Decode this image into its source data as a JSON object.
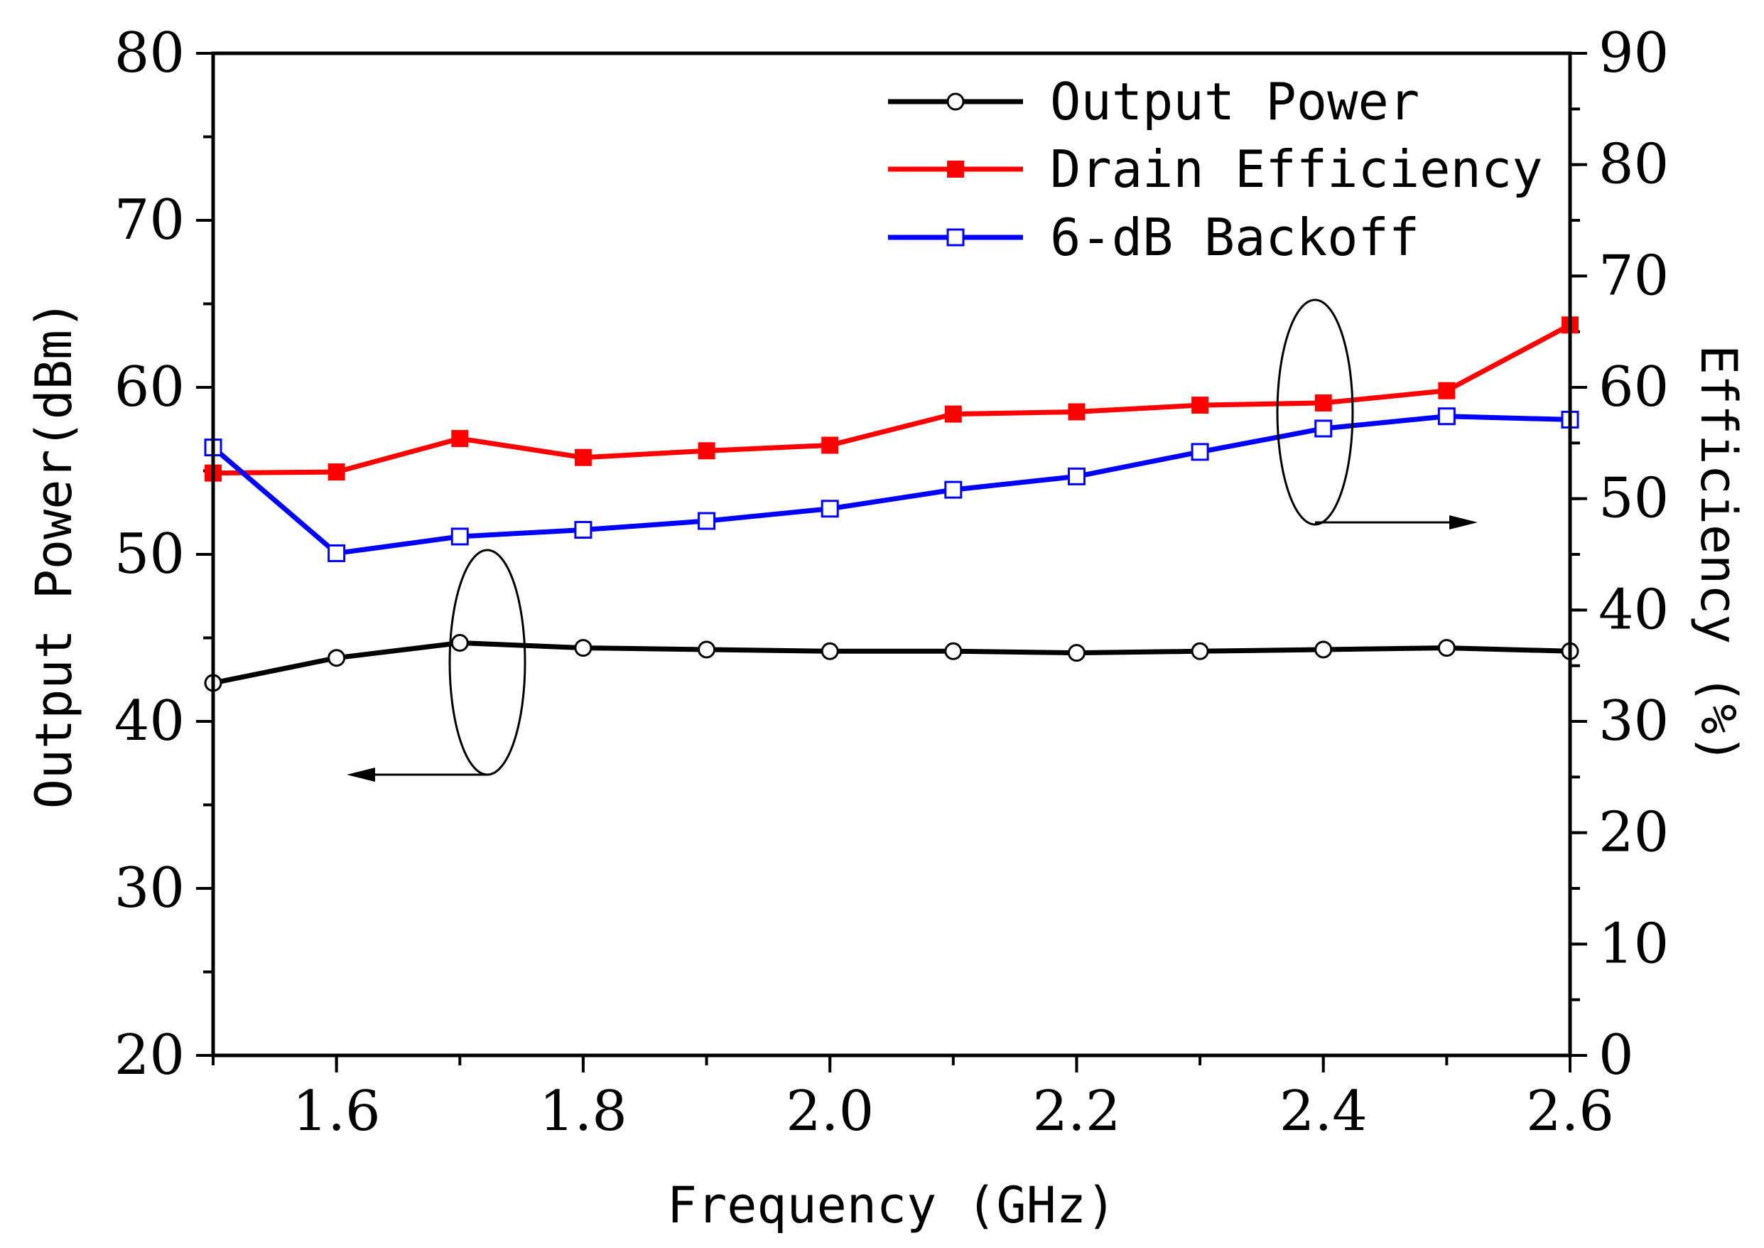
{
  "chart_data": {
    "type": "line",
    "xlabel": "Frequency (GHz)",
    "ylabel_left": "Output Power(dBm)",
    "ylabel_right": "Efficiency (%)",
    "xlim": [
      1.5,
      2.6
    ],
    "ylim_left": [
      20,
      80
    ],
    "ylim_right": [
      0,
      90
    ],
    "x_ticks": [
      "1.6",
      "1.8",
      "2.0",
      "2.2",
      "2.4",
      "2.6"
    ],
    "y_left_ticks": [
      "20",
      "30",
      "40",
      "50",
      "60",
      "70",
      "80"
    ],
    "y_right_ticks": [
      "0",
      "10",
      "20",
      "30",
      "40",
      "50",
      "60",
      "70",
      "80",
      "90"
    ],
    "grid": false,
    "legend_position": "top-right",
    "x": [
      1.5,
      1.6,
      1.7,
      1.8,
      1.9,
      2.0,
      2.1,
      2.2,
      2.3,
      2.4,
      2.5,
      2.6
    ],
    "series": [
      {
        "name": "Output Power",
        "axis": "left",
        "color": "#000000",
        "marker": "open-circle",
        "values": [
          42.3,
          43.8,
          44.7,
          44.4,
          44.3,
          44.2,
          44.2,
          44.1,
          44.2,
          44.3,
          44.4,
          44.2
        ]
      },
      {
        "name": "Drain Efficiency",
        "axis": "right",
        "color": "#ff0000",
        "marker": "filled-square",
        "values": [
          52.3,
          52.4,
          55.4,
          53.7,
          54.3,
          54.8,
          57.6,
          57.8,
          58.4,
          58.6,
          59.7,
          65.6
        ]
      },
      {
        "name": "6-dB Backoff",
        "axis": "right",
        "color": "#0000ff",
        "marker": "open-square",
        "values": [
          54.6,
          45.1,
          46.6,
          47.2,
          48.0,
          49.1,
          50.8,
          52.0,
          54.2,
          56.3,
          57.4,
          57.1
        ]
      }
    ]
  }
}
